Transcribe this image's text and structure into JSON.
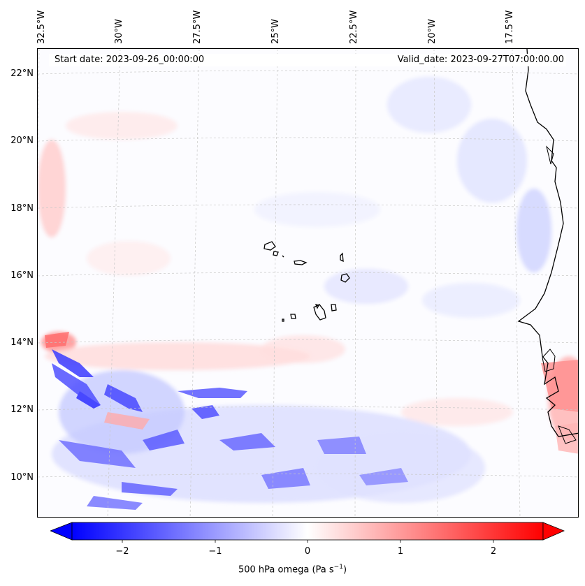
{
  "map": {
    "start_date": "Start date: 2023-09-26_00:00:00",
    "valid_date": "Valid_date: 2023-09-27T07:00:00.00",
    "lat_labels": [
      "22°N",
      "20°N",
      "18°N",
      "16°N",
      "14°N",
      "12°N",
      "10°N"
    ],
    "lon_labels": [
      "32.5°W",
      "30°W",
      "27.5°W",
      "25°W",
      "22.5°W",
      "20°W",
      "17.5°W"
    ],
    "field": "500 hPa omega",
    "colors": {
      "negative": "#0000ff",
      "neutral": "#ffffff",
      "positive": "#ff0000",
      "coast": "#000000",
      "grid": "#c8c8c8"
    }
  },
  "colorbar": {
    "label": "500 hPa omega (Pa s",
    "label_exp": "−1",
    "label_close": ")",
    "ticks": [
      "−2",
      "−1",
      "0",
      "1",
      "2"
    ],
    "min": -2.7,
    "max": 2.7,
    "tick_values": [
      -2,
      -1,
      0,
      1,
      2
    ]
  }
}
